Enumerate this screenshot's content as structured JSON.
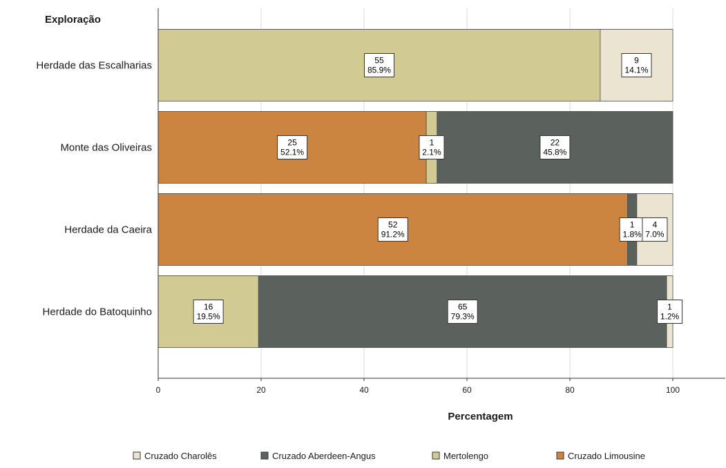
{
  "chart_data": {
    "type": "bar",
    "orientation": "horizontal",
    "stacked": true,
    "percent_stacked": true,
    "title": "",
    "ylabel": "Exploração",
    "xlabel": "Percentagem",
    "xlim": [
      0,
      110
    ],
    "xticks": [
      0,
      20,
      40,
      60,
      80,
      100
    ],
    "grid": true,
    "legend_position": "bottom",
    "categories": [
      "Herdade das Escalharias",
      "Monte das Oliveiras",
      "Herdade da Caeira",
      "Herdade do Batoquinho"
    ],
    "series": [
      {
        "name": "Cruzado Limousine",
        "color": "#cc8540",
        "counts": [
          0,
          25,
          52,
          0
        ],
        "values": [
          0,
          52.1,
          91.2,
          0
        ],
        "labels": [
          "",
          "52.1%",
          "91.2%",
          ""
        ]
      },
      {
        "name": "Mertolengo",
        "color": "#d1cb93",
        "counts": [
          55,
          1,
          0,
          16
        ],
        "values": [
          85.9,
          2.1,
          0,
          19.5
        ],
        "labels": [
          "85.9%",
          "2.1%",
          "",
          "19.5%"
        ]
      },
      {
        "name": "Cruzado Aberdeen-Angus",
        "color": "#5b625e",
        "counts": [
          0,
          22,
          1,
          65
        ],
        "values": [
          0,
          45.8,
          1.8,
          79.3
        ],
        "labels": [
          "",
          "45.8%",
          "1.8%",
          "79.3%"
        ]
      },
      {
        "name": "Cruzado Charolês",
        "color": "#ebe4d1",
        "counts": [
          9,
          0,
          4,
          1
        ],
        "values": [
          14.1,
          0,
          7.0,
          1.2
        ],
        "labels": [
          "14.1%",
          "",
          "7.0%",
          "1.2%"
        ]
      }
    ],
    "legend_order": [
      "Cruzado Charolês",
      "Cruzado Aberdeen-Angus",
      "Mertolengo",
      "Cruzado Limousine"
    ]
  }
}
